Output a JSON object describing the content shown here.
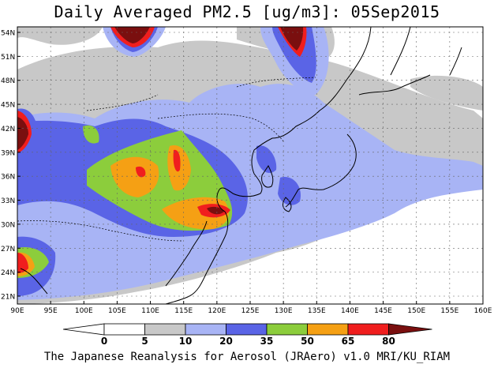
{
  "title": "Daily Averaged PM2.5 [ug/m3]: 05Sep2015",
  "credit": "The Japanese Reanalysis for Aerosol (JRAero) v1.0 MRI/KU_RIAM",
  "map": {
    "lat_labels": [
      "54N",
      "51N",
      "48N",
      "45N",
      "42N",
      "39N",
      "36N",
      "33N",
      "30N",
      "27N",
      "24N",
      "21N"
    ],
    "lon_labels": [
      "90E",
      "95E",
      "100E",
      "105E",
      "110E",
      "115E",
      "120E",
      "125E",
      "130E",
      "135E",
      "140E",
      "145E",
      "150E",
      "155E",
      "160E"
    ]
  },
  "colorbar": {
    "levels": [
      "0",
      "5",
      "10",
      "20",
      "35",
      "50",
      "65",
      "80"
    ],
    "colors": {
      "lt5": "#ffffff",
      "b5_10": "#c8c8c8",
      "b10_20": "#a8b4f5",
      "b20_35": "#5a64e6",
      "b35_50": "#8ccd3c",
      "b50_65": "#f5a014",
      "b65_80": "#f01e1e",
      "ge80": "#7a0f0f"
    }
  }
}
